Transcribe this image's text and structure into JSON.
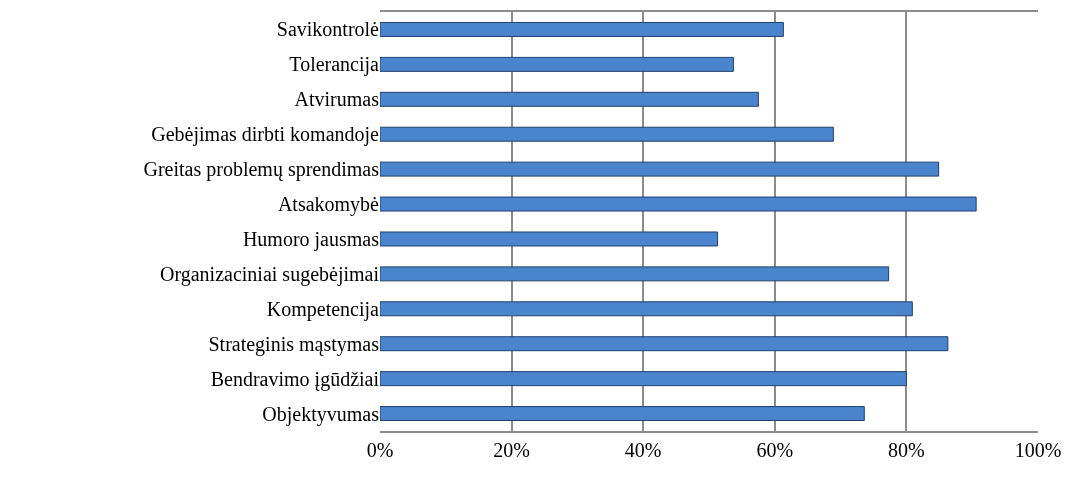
{
  "chart_data": {
    "type": "bar",
    "orientation": "horizontal",
    "categories": [
      "Savikontrolė",
      "Tolerancija",
      "Atvirumas",
      "Gebėjimas dirbti komandoje",
      "Greitas problemų sprendimas",
      "Atsakomybė",
      "Humoro jausmas",
      "Organizaciniai sugebėjimai",
      "Kompetencija",
      "Strateginis mąstymas",
      "Bendravimo įgūdžiai",
      "Objektyvumas"
    ],
    "values": [
      61.3,
      53.7,
      57.5,
      68.9,
      84.9,
      90.6,
      51.3,
      77.3,
      80.9,
      86.3,
      80.0,
      73.6
    ],
    "color": "#4a84cc",
    "xlim": [
      0,
      100
    ],
    "xticks": [
      {
        "value": 0,
        "label": "0%"
      },
      {
        "value": 20,
        "label": "20%"
      },
      {
        "value": 40,
        "label": "40%"
      },
      {
        "value": 60,
        "label": "60%"
      },
      {
        "value": 80,
        "label": "80%"
      },
      {
        "value": 100,
        "label": "100%"
      }
    ],
    "grid": "x",
    "legend": false
  }
}
